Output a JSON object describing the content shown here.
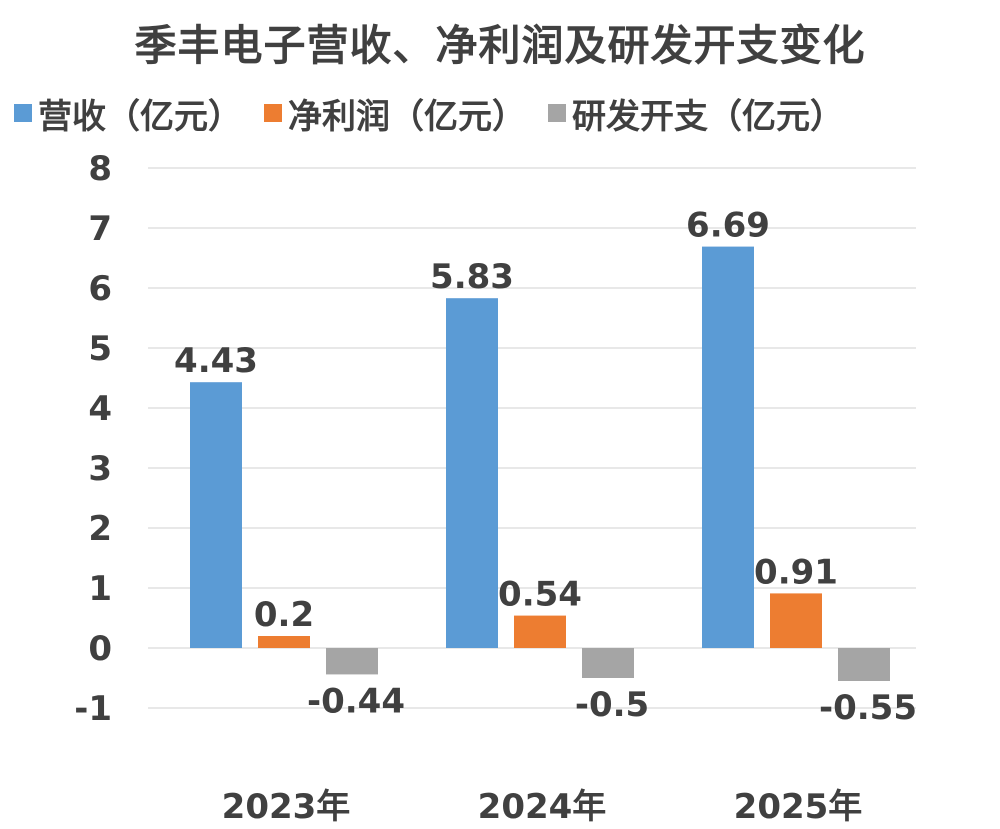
{
  "chart_data": {
    "type": "bar",
    "title": "季丰电子营收、净利润及研发开支变化",
    "categories": [
      "2023年",
      "2024年",
      "2025年"
    ],
    "series": [
      {
        "name": "营收（亿元）",
        "color": "#5B9BD5",
        "values": [
          4.43,
          5.83,
          6.69
        ],
        "labels": [
          "4.43",
          "5.83",
          "6.69"
        ]
      },
      {
        "name": "净利润（亿元）",
        "color": "#ED7D31",
        "values": [
          0.2,
          0.54,
          0.91
        ],
        "labels": [
          "0.2",
          "0.54",
          "0.91"
        ]
      },
      {
        "name": "研发开支（亿元）",
        "color": "#A5A5A5",
        "values": [
          -0.44,
          -0.5,
          -0.55
        ],
        "labels": [
          "-0.44",
          "-0.5",
          "-0.55"
        ]
      }
    ],
    "ylim": [
      -1,
      8
    ],
    "yticks": [
      8,
      7,
      6,
      5,
      4,
      3,
      2,
      1,
      0,
      -1
    ],
    "grid": true,
    "legend": "top-left",
    "xlabel": "",
    "ylabel": ""
  }
}
